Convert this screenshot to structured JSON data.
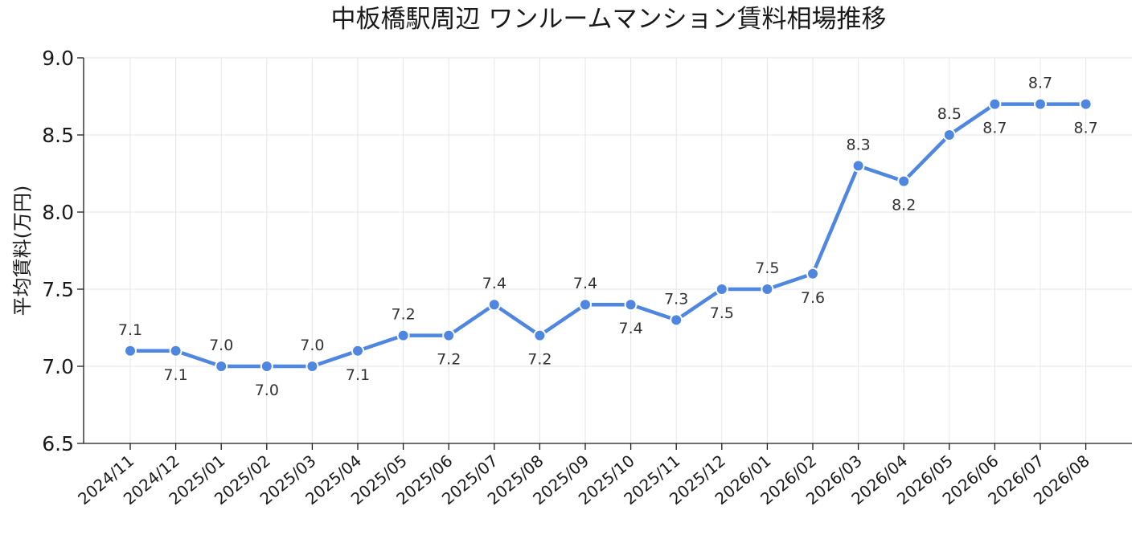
{
  "chart_data": {
    "type": "line",
    "title": "中板橋駅周辺 ワンルームマンション賃料相場推移",
    "xlabel": "",
    "ylabel": "平均賃料(万円)",
    "ylim": [
      6.5,
      9.0
    ],
    "yticks": [
      "6.5",
      "7.0",
      "7.5",
      "8.0",
      "8.5",
      "9.0"
    ],
    "grid": true,
    "categories": [
      "2024/11",
      "2024/12",
      "2025/01",
      "2025/02",
      "2025/03",
      "2025/04",
      "2025/05",
      "2025/06",
      "2025/07",
      "2025/08",
      "2025/09",
      "2025/10",
      "2025/11",
      "2025/12",
      "2026/01",
      "2026/02",
      "2026/03",
      "2026/04",
      "2026/05",
      "2026/06",
      "2026/07",
      "2026/08"
    ],
    "series": [
      {
        "values": [
          7.1,
          7.1,
          7.0,
          7.0,
          7.0,
          7.1,
          7.2,
          7.2,
          7.4,
          7.2,
          7.4,
          7.4,
          7.3,
          7.5,
          7.5,
          7.6,
          8.3,
          8.2,
          8.5,
          8.7,
          8.7,
          8.7
        ],
        "labels": [
          "7.1",
          "7.1",
          "7.0",
          "7.0",
          "7.0",
          "7.1",
          "7.2",
          "7.2",
          "7.4",
          "7.2",
          "7.4",
          "7.4",
          "7.3",
          "7.5",
          "7.5",
          "7.6",
          "8.3",
          "8.2",
          "8.5",
          "8.7",
          "8.7",
          "8.7"
        ],
        "label_position": [
          "above",
          "below",
          "above",
          "below",
          "above",
          "below",
          "above",
          "below",
          "above",
          "below",
          "above",
          "below",
          "above",
          "below",
          "above",
          "below",
          "above",
          "below",
          "above",
          "below",
          "above",
          "below"
        ]
      }
    ],
    "line_color": "#4f86e0"
  }
}
